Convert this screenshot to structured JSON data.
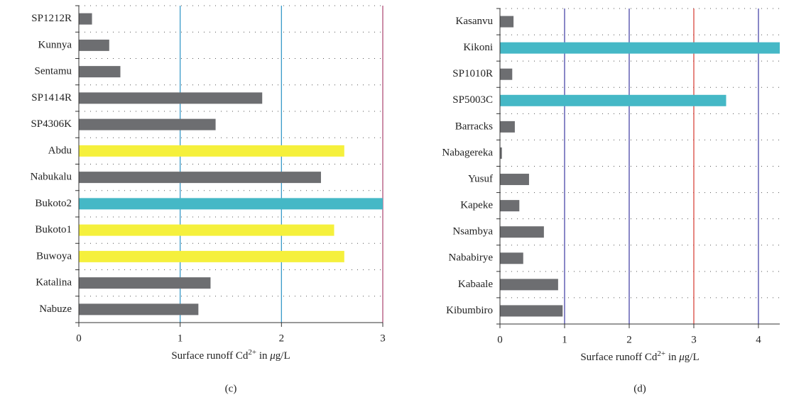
{
  "chart_data": [
    {
      "type": "bar",
      "orientation": "horizontal",
      "caption": "(c)",
      "categories": [
        "SP1212R",
        "Kunnya",
        "Sentamu",
        "SP1414R",
        "SP4306K",
        "Abdu",
        "Nabukalu",
        "Bukoto2",
        "Bukoto1",
        "Buwoya",
        "Katalina",
        "Nabuze"
      ],
      "values": [
        0.13,
        0.3,
        0.41,
        1.81,
        1.35,
        2.62,
        2.39,
        3.0,
        2.52,
        2.62,
        1.3,
        1.18
      ],
      "colors": [
        "#6d6e71",
        "#6d6e71",
        "#6d6e71",
        "#6d6e71",
        "#6d6e71",
        "#f5f03c",
        "#6d6e71",
        "#45b8c6",
        "#f5f03c",
        "#f5f03c",
        "#6d6e71",
        "#6d6e71"
      ],
      "xlabel": [
        {
          "text": "Surface runoff Cd"
        },
        {
          "text": "2+",
          "style": "sup"
        },
        {
          "text": " in "
        },
        {
          "text": "μ",
          "style": "italic"
        },
        {
          "text": "g/L"
        }
      ],
      "xlim": [
        0,
        3
      ],
      "xticks": [
        0,
        1,
        2,
        3
      ],
      "grid": "dotted",
      "reference_lines": [
        {
          "value": 1,
          "color": "#3a9ac9"
        },
        {
          "value": 2,
          "color": "#3a9ac9"
        },
        {
          "value": 3,
          "color": "#b0507a"
        }
      ]
    },
    {
      "type": "bar",
      "orientation": "horizontal",
      "caption": "(d)",
      "categories": [
        "Kasanvu",
        "Kikoni",
        "SP1010R",
        "SP5003C",
        "Barracks",
        "Nabagereka",
        "Yusuf",
        "Kapeke",
        "Nsambya",
        "Nababirye",
        "Kabaale",
        "Kibumbiro"
      ],
      "values": [
        0.21,
        4.33,
        0.19,
        3.5,
        0.23,
        0.03,
        0.45,
        0.3,
        0.68,
        0.36,
        0.9,
        0.97
      ],
      "colors": [
        "#6d6e71",
        "#45b8c6",
        "#6d6e71",
        "#45b8c6",
        "#6d6e71",
        "#6d6e71",
        "#6d6e71",
        "#6d6e71",
        "#6d6e71",
        "#6d6e71",
        "#6d6e71",
        "#6d6e71"
      ],
      "xlabel": [
        {
          "text": "Surface runoff Cd"
        },
        {
          "text": "2+",
          "style": "sup"
        },
        {
          "text": " in "
        },
        {
          "text": "μ",
          "style": "italic"
        },
        {
          "text": "g/L"
        }
      ],
      "xlim": [
        0,
        4.33
      ],
      "xticks": [
        0,
        1,
        2,
        3,
        4
      ],
      "grid": "dotted",
      "reference_lines": [
        {
          "value": 1,
          "color": "#4a48a8"
        },
        {
          "value": 2,
          "color": "#4a48a8"
        },
        {
          "value": 3,
          "color": "#d9473f"
        },
        {
          "value": 4,
          "color": "#4a48a8"
        }
      ]
    }
  ]
}
